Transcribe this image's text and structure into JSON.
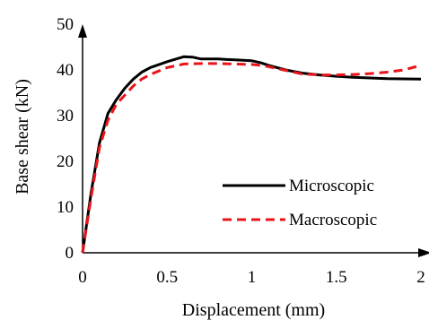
{
  "chart_data": {
    "type": "line",
    "title": "",
    "xlabel": "Displacement (mm)",
    "ylabel": "Base shear (kN)",
    "xlim": [
      0,
      2
    ],
    "ylim": [
      0,
      50
    ],
    "xticks": [
      0,
      0.5,
      1,
      1.5,
      2
    ],
    "yticks": [
      0,
      10,
      20,
      30,
      40,
      50
    ],
    "xtick_labels": [
      "0",
      "0.5",
      "1",
      "1.5",
      "2"
    ],
    "ytick_labels": [
      "0",
      "10",
      "20",
      "30",
      "40",
      "50"
    ],
    "grid": false,
    "legend_position": "right",
    "series": [
      {
        "name": "Microscopic",
        "color": "#000000",
        "dash": "solid",
        "x": [
          0,
          0.05,
          0.1,
          0.15,
          0.2,
          0.25,
          0.3,
          0.35,
          0.4,
          0.5,
          0.6,
          0.65,
          0.7,
          0.8,
          0.9,
          1.0,
          1.05,
          1.1,
          1.2,
          1.3,
          1.4,
          1.5,
          1.6,
          1.8,
          2.0
        ],
        "y": [
          0,
          13,
          24,
          30.5,
          33.5,
          36,
          38,
          39.5,
          40.5,
          41.8,
          42.9,
          42.8,
          42.4,
          42.4,
          42.2,
          42.0,
          41.6,
          41.0,
          40.0,
          39.3,
          38.9,
          38.6,
          38.4,
          38.1,
          38.0
        ]
      },
      {
        "name": "Macroscopic",
        "color": "#e8141a",
        "dash": "dashed",
        "x": [
          0,
          0.05,
          0.1,
          0.15,
          0.2,
          0.25,
          0.3,
          0.35,
          0.4,
          0.5,
          0.6,
          0.7,
          0.8,
          0.9,
          1.0,
          1.05,
          1.1,
          1.2,
          1.3,
          1.4,
          1.5,
          1.6,
          1.7,
          1.8,
          1.9,
          2.0
        ],
        "y": [
          0,
          12,
          23,
          29,
          32.5,
          34.5,
          36.5,
          38,
          39,
          40.5,
          41.3,
          41.4,
          41.4,
          41.3,
          41.2,
          41.0,
          40.7,
          39.9,
          39.1,
          38.9,
          38.9,
          39.0,
          39.2,
          39.5,
          40.0,
          41.0
        ]
      }
    ]
  }
}
